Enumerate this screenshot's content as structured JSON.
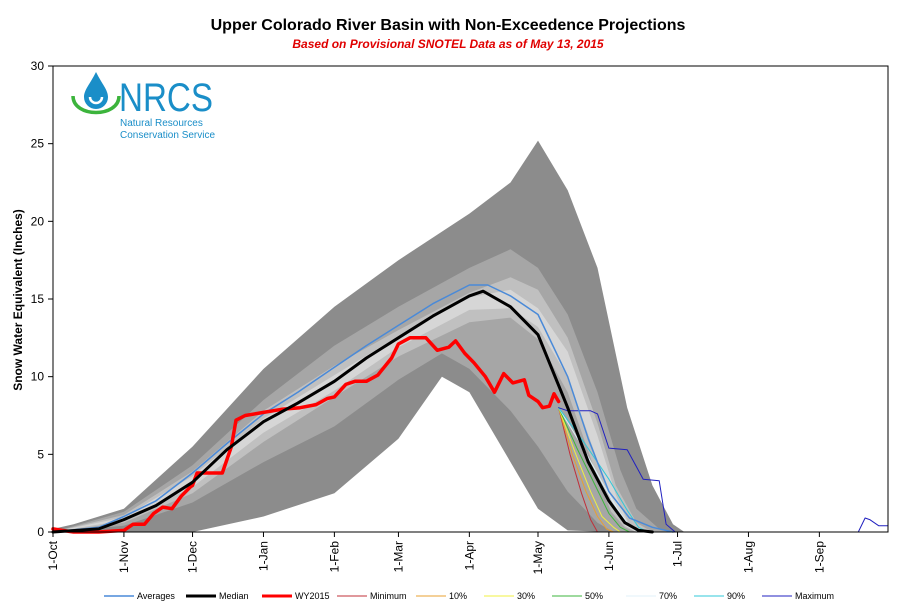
{
  "chart_data": {
    "type": "area",
    "title": "Upper Colorado River Basin with Non-Exceedence Projections",
    "subtitle": "Based on Provisional SNOTEL Data as of May 13, 2015",
    "xlabel": "",
    "ylabel": "Snow Water Equivalent (Inches)",
    "ylim": [
      0,
      30
    ],
    "yticks": [
      "0",
      "5",
      "10",
      "15",
      "20",
      "25",
      "30"
    ],
    "x_unit": "days since 1-Oct",
    "xlim": [
      0,
      365
    ],
    "categories": [
      "1-Oct",
      "1-Nov",
      "1-Dec",
      "1-Jan",
      "1-Feb",
      "1-Mar",
      "1-Apr",
      "1-May",
      "1-Jun",
      "1-Jul",
      "1-Aug",
      "1-Sep"
    ],
    "category_days": [
      0,
      31,
      61,
      92,
      123,
      151,
      182,
      212,
      243,
      273,
      304,
      335
    ],
    "grid": false,
    "legend_position": "bottom",
    "bands": [
      {
        "name": "max-min",
        "color": "#8c8c8c",
        "upper": [
          [
            0,
            0.2
          ],
          [
            9,
            0.5
          ],
          [
            31,
            1.5
          ],
          [
            61,
            5.5
          ],
          [
            92,
            10.5
          ],
          [
            123,
            14.5
          ],
          [
            151,
            17.5
          ],
          [
            182,
            20.5
          ],
          [
            200,
            22.5
          ],
          [
            212,
            25.2
          ],
          [
            225,
            22
          ],
          [
            238,
            17
          ],
          [
            251,
            8
          ],
          [
            262,
            3
          ],
          [
            271,
            0.5
          ],
          [
            276,
            0
          ]
        ],
        "lower": [
          [
            0,
            0
          ],
          [
            31,
            0
          ],
          [
            61,
            0
          ],
          [
            92,
            1
          ],
          [
            123,
            2.5
          ],
          [
            151,
            6
          ],
          [
            170,
            10
          ],
          [
            182,
            9
          ],
          [
            200,
            4.5
          ],
          [
            212,
            1.5
          ],
          [
            225,
            0.1
          ],
          [
            243,
            0
          ],
          [
            276,
            0
          ]
        ]
      },
      {
        "name": "90-10",
        "color": "#a6a6a6",
        "upper": [
          [
            0,
            0
          ],
          [
            31,
            1.3
          ],
          [
            61,
            4.3
          ],
          [
            92,
            8.5
          ],
          [
            123,
            12
          ],
          [
            151,
            14.5
          ],
          [
            182,
            17
          ],
          [
            200,
            18.2
          ],
          [
            212,
            17
          ],
          [
            225,
            14
          ],
          [
            238,
            9
          ],
          [
            248,
            4
          ],
          [
            255,
            1.5
          ],
          [
            265,
            0.2
          ],
          [
            271,
            0
          ]
        ],
        "lower": [
          [
            0,
            0
          ],
          [
            31,
            0.4
          ],
          [
            61,
            1.9
          ],
          [
            92,
            4.5
          ],
          [
            123,
            6.8
          ],
          [
            151,
            9.8
          ],
          [
            170,
            11.5
          ],
          [
            182,
            10.5
          ],
          [
            200,
            7.8
          ],
          [
            212,
            5.5
          ],
          [
            225,
            2.6
          ],
          [
            238,
            0.6
          ],
          [
            245,
            0
          ],
          [
            271,
            0
          ]
        ]
      },
      {
        "name": "70-30",
        "color": "#c0c0c0",
        "upper": [
          [
            0,
            0
          ],
          [
            31,
            1.1
          ],
          [
            61,
            3.9
          ],
          [
            92,
            7.8
          ],
          [
            123,
            10.7
          ],
          [
            151,
            13
          ],
          [
            182,
            15.4
          ],
          [
            200,
            16.4
          ],
          [
            212,
            15.6
          ],
          [
            225,
            12.5
          ],
          [
            238,
            7
          ],
          [
            246,
            3
          ],
          [
            255,
            0.6
          ],
          [
            262,
            0
          ]
        ],
        "lower": [
          [
            0,
            0
          ],
          [
            31,
            0.6
          ],
          [
            61,
            2.5
          ],
          [
            92,
            5.8
          ],
          [
            123,
            8.7
          ],
          [
            151,
            11.3
          ],
          [
            182,
            13.5
          ],
          [
            200,
            13.8
          ],
          [
            212,
            12.4
          ],
          [
            225,
            9
          ],
          [
            238,
            3.5
          ],
          [
            244,
            1.3
          ],
          [
            250,
            0.3
          ],
          [
            255,
            0
          ]
        ]
      },
      {
        "name": "60-40",
        "color": "#d6d6d6",
        "upper": [
          [
            0,
            0
          ],
          [
            31,
            0.95
          ],
          [
            61,
            3.6
          ],
          [
            92,
            7.3
          ],
          [
            123,
            10.1
          ],
          [
            151,
            12.6
          ],
          [
            182,
            15.1
          ],
          [
            200,
            15.6
          ],
          [
            212,
            14.4
          ],
          [
            225,
            11.6
          ],
          [
            238,
            6.2
          ],
          [
            246,
            2.4
          ],
          [
            252,
            0.4
          ],
          [
            258,
            0
          ]
        ],
        "lower": [
          [
            0,
            0
          ],
          [
            31,
            0.75
          ],
          [
            61,
            2.9
          ],
          [
            92,
            6.4
          ],
          [
            123,
            9.1
          ],
          [
            151,
            11.9
          ],
          [
            182,
            14.3
          ],
          [
            200,
            14.4
          ],
          [
            212,
            13.2
          ],
          [
            225,
            10
          ],
          [
            238,
            4.6
          ],
          [
            244,
            2
          ],
          [
            250,
            0.4
          ],
          [
            255,
            0
          ]
        ]
      }
    ],
    "series": [
      {
        "name": "Averages",
        "color": "#4a8ad8",
        "width": 1.5,
        "points": [
          [
            0,
            0
          ],
          [
            20,
            0.3
          ],
          [
            31,
            1.0
          ],
          [
            45,
            2.0
          ],
          [
            61,
            3.8
          ],
          [
            76,
            5.7
          ],
          [
            92,
            7.6
          ],
          [
            107,
            9.0
          ],
          [
            123,
            10.6
          ],
          [
            137,
            12.0
          ],
          [
            151,
            13.3
          ],
          [
            166,
            14.7
          ],
          [
            182,
            15.9
          ],
          [
            190,
            15.9
          ],
          [
            200,
            15.2
          ],
          [
            212,
            14.0
          ],
          [
            225,
            10.0
          ],
          [
            234,
            6.0
          ],
          [
            243,
            2.6
          ],
          [
            252,
            0.9
          ],
          [
            262,
            0.3
          ],
          [
            271,
            0
          ]
        ]
      },
      {
        "name": "Median",
        "color": "#000000",
        "width": 3,
        "points": [
          [
            0,
            0
          ],
          [
            20,
            0.2
          ],
          [
            31,
            0.8
          ],
          [
            45,
            1.7
          ],
          [
            61,
            3.2
          ],
          [
            76,
            5.3
          ],
          [
            92,
            7.1
          ],
          [
            107,
            8.3
          ],
          [
            123,
            9.7
          ],
          [
            137,
            11.2
          ],
          [
            151,
            12.5
          ],
          [
            166,
            13.9
          ],
          [
            182,
            15.2
          ],
          [
            188,
            15.5
          ],
          [
            200,
            14.5
          ],
          [
            212,
            12.7
          ],
          [
            225,
            8.0
          ],
          [
            234,
            4.5
          ],
          [
            243,
            2.0
          ],
          [
            250,
            0.6
          ],
          [
            256,
            0.1
          ],
          [
            262,
            0
          ]
        ]
      },
      {
        "name": "WY2015",
        "color": "#ff0000",
        "width": 3.5,
        "points": [
          [
            0,
            0.2
          ],
          [
            4,
            0.1
          ],
          [
            9,
            0
          ],
          [
            20,
            0
          ],
          [
            31,
            0.1
          ],
          [
            35,
            0.5
          ],
          [
            40,
            0.5
          ],
          [
            44,
            1.2
          ],
          [
            48,
            1.6
          ],
          [
            52,
            1.5
          ],
          [
            56,
            2.3
          ],
          [
            60,
            2.9
          ],
          [
            61,
            3.0
          ],
          [
            63,
            3.8
          ],
          [
            68,
            3.8
          ],
          [
            74,
            3.8
          ],
          [
            78,
            5.5
          ],
          [
            80,
            7.2
          ],
          [
            84,
            7.5
          ],
          [
            92,
            7.7
          ],
          [
            100,
            7.9
          ],
          [
            108,
            8.0
          ],
          [
            115,
            8.2
          ],
          [
            120,
            8.6
          ],
          [
            123,
            8.7
          ],
          [
            128,
            9.5
          ],
          [
            132,
            9.7
          ],
          [
            137,
            9.7
          ],
          [
            142,
            10.1
          ],
          [
            148,
            11.2
          ],
          [
            151,
            12.1
          ],
          [
            156,
            12.5
          ],
          [
            163,
            12.5
          ],
          [
            168,
            11.7
          ],
          [
            173,
            11.9
          ],
          [
            176,
            12.3
          ],
          [
            180,
            11.5
          ],
          [
            184,
            10.9
          ],
          [
            189,
            10.0
          ],
          [
            193,
            9.0
          ],
          [
            197,
            10.2
          ],
          [
            201,
            9.6
          ],
          [
            206,
            9.8
          ],
          [
            208,
            8.8
          ],
          [
            212,
            8.4
          ],
          [
            214,
            8.0
          ],
          [
            217,
            8.1
          ],
          [
            219,
            8.9
          ],
          [
            221,
            8.4
          ]
        ]
      },
      {
        "name": "Minimum",
        "color": "#c0303a",
        "width": 1,
        "points": [
          [
            221,
            8.0
          ],
          [
            226,
            5.0
          ],
          [
            231,
            2.5
          ],
          [
            235,
            0.8
          ],
          [
            238,
            0
          ]
        ]
      },
      {
        "name": "10%",
        "color": "#e8a030",
        "width": 1,
        "points": [
          [
            221,
            8.0
          ],
          [
            227,
            5.0
          ],
          [
            233,
            2.6
          ],
          [
            238,
            1.0
          ],
          [
            242,
            0.2
          ],
          [
            245,
            0
          ]
        ]
      },
      {
        "name": "30%",
        "color": "#f0f040",
        "width": 1,
        "points": [
          [
            221,
            8.0
          ],
          [
            228,
            5.2
          ],
          [
            235,
            2.6
          ],
          [
            240,
            1.0
          ],
          [
            245,
            0.3
          ],
          [
            248,
            0
          ]
        ]
      },
      {
        "name": "50%",
        "color": "#3cb43c",
        "width": 1,
        "points": [
          [
            221,
            8.0
          ],
          [
            229,
            5.4
          ],
          [
            237,
            3.0
          ],
          [
            243,
            1.2
          ],
          [
            248,
            0.3
          ],
          [
            252,
            0
          ]
        ]
      },
      {
        "name": "70%",
        "color": "#e0f0f8",
        "width": 1,
        "points": [
          [
            221,
            8.0
          ],
          [
            231,
            5.6
          ],
          [
            240,
            3.2
          ],
          [
            247,
            1.4
          ],
          [
            252,
            0.4
          ],
          [
            256,
            0
          ]
        ]
      },
      {
        "name": "90%",
        "color": "#30c8d8",
        "width": 1,
        "points": [
          [
            221,
            8.0
          ],
          [
            232,
            5.8
          ],
          [
            243,
            3.4
          ],
          [
            251,
            1.4
          ],
          [
            256,
            0.3
          ],
          [
            260,
            0
          ]
        ]
      },
      {
        "name": "Maximum",
        "color": "#2020c0",
        "width": 1,
        "points": [
          [
            221,
            8.0
          ],
          [
            225,
            7.8
          ],
          [
            235,
            7.8
          ],
          [
            238,
            7.6
          ],
          [
            243,
            5.4
          ],
          [
            251,
            5.3
          ],
          [
            258,
            3.4
          ],
          [
            265,
            3.3
          ],
          [
            268,
            0.5
          ],
          [
            272,
            0
          ],
          [
            352,
            0
          ],
          [
            355,
            0.9
          ],
          [
            357,
            0.8
          ],
          [
            361,
            0.4
          ],
          [
            365,
            0.4
          ]
        ]
      }
    ],
    "legend": [
      "Averages",
      "Median",
      "WY2015",
      "Minimum",
      "10%",
      "30%",
      "50%",
      "70%",
      "90%",
      "Maximum"
    ]
  },
  "logo": {
    "name": "NRCS",
    "line1": "Natural Resources",
    "line2": "Conservation Service",
    "color": "#1a8ec8",
    "accent": "#3cb43c"
  }
}
